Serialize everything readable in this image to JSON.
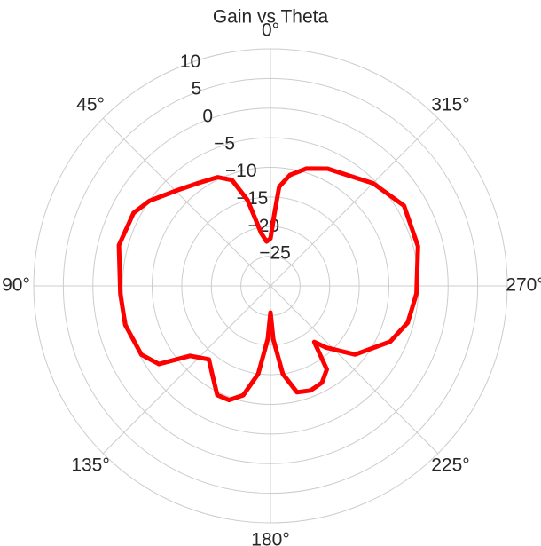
{
  "chart_data": {
    "type": "polar",
    "title": "Gain vs Theta",
    "theta_zero": "N",
    "theta_direction": "counterclockwise",
    "x": [
      0,
      5,
      10,
      15,
      20,
      26,
      35,
      44,
      55,
      62,
      75,
      93,
      105,
      118,
      125,
      131,
      140,
      147,
      154,
      160,
      166,
      172,
      177,
      180,
      183,
      188,
      194,
      201,
      208,
      214,
      218,
      222,
      231,
      245,
      255,
      267,
      285,
      301,
      315,
      322,
      334,
      343,
      350,
      355,
      357,
      360
    ],
    "values": [
      -22,
      -22.5,
      -21,
      -15,
      -11,
      -9.6,
      -8.8,
      -7.5,
      -5,
      -3.8,
      -3.5,
      -4.6,
      -4.6,
      -5.3,
      -7,
      -12,
      -13.8,
      -12,
      -9.5,
      -9.5,
      -11,
      -15,
      -21,
      -25.5,
      -21,
      -15,
      -11.5,
      -11.1,
      -11.5,
      -13,
      -18,
      -16,
      -11.6,
      -7.7,
      -6,
      -5.3,
      -4.2,
      -3.7,
      -5.5,
      -6.8,
      -8,
      -9.3,
      -11,
      -13.2,
      -18,
      -22
    ],
    "color": "#ff0000",
    "ylim": [
      -30,
      10
    ],
    "yticks": [
      {
        "value": -25,
        "label": "−25"
      },
      {
        "value": -20,
        "label": "−20"
      },
      {
        "value": -15,
        "label": "−15"
      },
      {
        "value": -10,
        "label": "−10"
      },
      {
        "value": -5,
        "label": "−5"
      },
      0,
      5,
      10
    ],
    "xticks": [
      {
        "value": 0,
        "label": "0°"
      },
      {
        "value": 45,
        "label": "45°"
      },
      {
        "value": 90,
        "label": "90°"
      },
      {
        "value": 135,
        "label": "135°"
      },
      {
        "value": 180,
        "label": "180°"
      },
      {
        "value": 225,
        "label": "225°"
      },
      {
        "value": 270,
        "label": "270°"
      },
      {
        "value": 315,
        "label": "315°"
      }
    ],
    "grid": true
  }
}
